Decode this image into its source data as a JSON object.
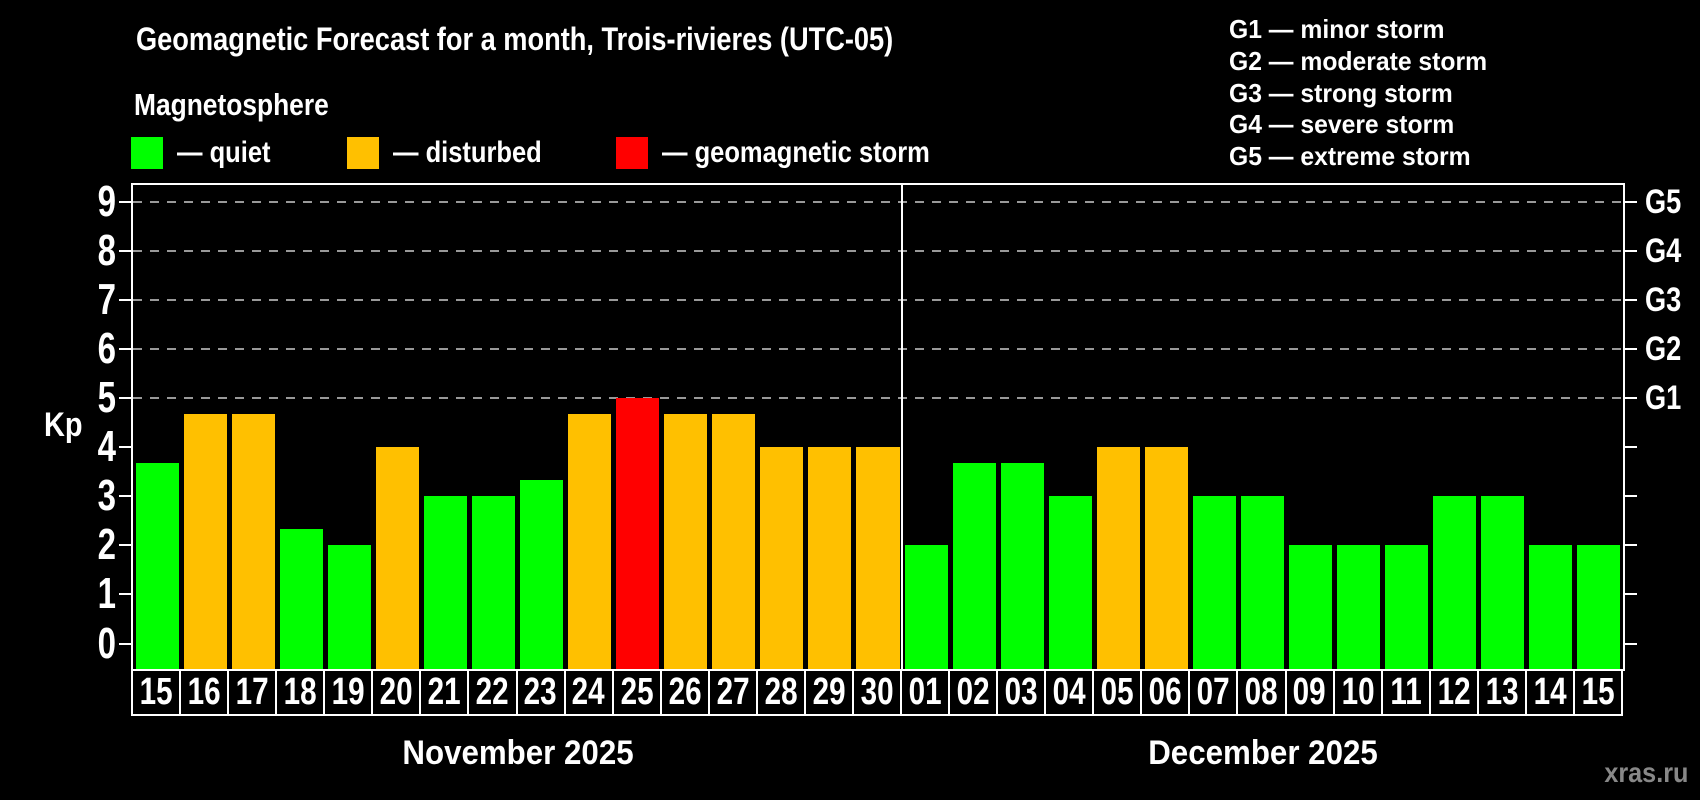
{
  "header": {
    "title": "Geomagnetic Forecast for a month, Trois-rivieres (UTC-05)",
    "subtitle": "Magnetosphere"
  },
  "legend": {
    "items": [
      {
        "name": "quiet",
        "label": "— quiet",
        "color": "#00ff00"
      },
      {
        "name": "disturbed",
        "label": "— disturbed",
        "color": "#ffc000"
      },
      {
        "name": "storm",
        "label": "— geomagnetic storm",
        "color": "#ff0000"
      }
    ]
  },
  "g_legend": {
    "items": [
      "G1 — minor storm",
      "G2 — moderate storm",
      "G3 — strong storm",
      "G4 — severe storm",
      "G5 — extreme storm"
    ]
  },
  "watermark": "xras.ru",
  "chart_data": {
    "type": "bar",
    "title": "Geomagnetic Forecast for a month, Trois-rivieres (UTC-05)",
    "ylabel": "Kp",
    "ylim": [
      0,
      9
    ],
    "y_ticks": [
      0,
      1,
      2,
      3,
      4,
      5,
      6,
      7,
      8,
      9
    ],
    "dashed_gridlines_kp": [
      5,
      6,
      7,
      8,
      9
    ],
    "right_axis": {
      "labels": [
        {
          "kp": 5,
          "text": "G1"
        },
        {
          "kp": 6,
          "text": "G2"
        },
        {
          "kp": 7,
          "text": "G3"
        },
        {
          "kp": 8,
          "text": "G4"
        },
        {
          "kp": 9,
          "text": "G5"
        }
      ]
    },
    "status_colors": {
      "quiet": "#00ff00",
      "disturbed": "#ffc000",
      "storm": "#ff0000"
    },
    "months": [
      {
        "label": "November 2025",
        "days": [
          "15",
          "16",
          "17",
          "18",
          "19",
          "20",
          "21",
          "22",
          "23",
          "24",
          "25",
          "26",
          "27",
          "28",
          "29",
          "30"
        ],
        "values": [
          3.67,
          4.67,
          4.67,
          2.33,
          2,
          4,
          3,
          3,
          3.33,
          4.67,
          5,
          4.67,
          4.67,
          4,
          4,
          4
        ],
        "statuses": [
          "quiet",
          "disturbed",
          "disturbed",
          "quiet",
          "quiet",
          "disturbed",
          "quiet",
          "quiet",
          "quiet",
          "disturbed",
          "storm",
          "disturbed",
          "disturbed",
          "disturbed",
          "disturbed",
          "disturbed"
        ]
      },
      {
        "label": "December 2025",
        "days": [
          "01",
          "02",
          "03",
          "04",
          "05",
          "06",
          "07",
          "08",
          "09",
          "10",
          "11",
          "12",
          "13",
          "14",
          "15"
        ],
        "values": [
          2,
          3.67,
          3.67,
          3,
          4,
          4,
          3,
          3,
          2,
          2,
          2,
          3,
          3,
          2,
          2
        ],
        "statuses": [
          "quiet",
          "quiet",
          "quiet",
          "quiet",
          "disturbed",
          "disturbed",
          "quiet",
          "quiet",
          "quiet",
          "quiet",
          "quiet",
          "quiet",
          "quiet",
          "quiet",
          "quiet"
        ]
      }
    ]
  }
}
